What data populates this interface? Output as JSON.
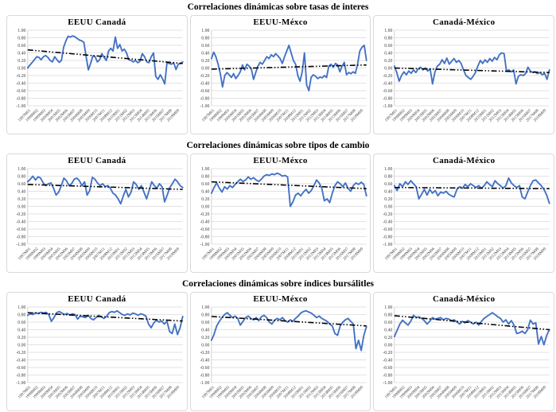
{
  "chart_data": {
    "type": "line",
    "common": {
      "ylim": [
        -1,
        1
      ],
      "ytick_step": 0.2,
      "grid": true,
      "legend": "none",
      "series_color": "#4472C4",
      "trend_color": "#000000",
      "trend_style": "dash-dot-dot",
      "gridline_color": "#d9d9d9",
      "tick_label_color": "#404040",
      "y_tick_labels": [
        "1.00",
        "0.80",
        "0.60",
        "0.40",
        "0.20",
        "0.00",
        "-0.20",
        "-0.40",
        "-0.60",
        "-0.80",
        "-1.00"
      ],
      "x_tick_labels": [
        "1997M01",
        "1998M02",
        "1999M03",
        "2000M04",
        "2001M05",
        "2002M06",
        "2003M07",
        "2004M08",
        "2005M09",
        "2006M10",
        "2007M11",
        "2008M12",
        "2010M01",
        "2011M02",
        "2012M03",
        "2013M04",
        "2014M05",
        "2015M06",
        "2016M07",
        "2017M08",
        "2018M09"
      ]
    },
    "rows": [
      {
        "section_title": "Correlaciones dinámicas sobre tasas de interes",
        "charts": [
          {
            "title": "EEUU Canadá",
            "trend": [
              0.48,
              0.12
            ],
            "values": [
              0.0,
              0.08,
              0.15,
              0.22,
              0.3,
              0.28,
              0.22,
              0.3,
              0.33,
              0.28,
              0.2,
              0.16,
              0.3,
              0.22,
              0.15,
              0.2,
              0.55,
              0.72,
              0.84,
              0.82,
              0.85,
              0.83,
              0.78,
              0.74,
              0.72,
              0.68,
              0.3,
              -0.05,
              0.12,
              0.32,
              0.3,
              0.16,
              0.22,
              0.38,
              0.28,
              0.2,
              0.45,
              0.52,
              0.45,
              0.82,
              0.52,
              0.62,
              0.45,
              0.5,
              0.4,
              0.22,
              0.2,
              0.16,
              0.2,
              0.14,
              0.18,
              0.38,
              0.3,
              0.16,
              0.14,
              0.3,
              0.4,
              -0.22,
              -0.3,
              -0.18,
              -0.28,
              -0.42,
              0.14,
              0.12,
              0.1,
              0.14,
              -0.04,
              0.1,
              0.12,
              0.16
            ]
          },
          {
            "title": "EEUU-Méxco",
            "trend": [
              -0.03,
              0.08
            ],
            "values": [
              0.25,
              0.42,
              0.3,
              0.1,
              -0.15,
              -0.5,
              -0.2,
              -0.12,
              -0.18,
              -0.25,
              -0.15,
              -0.28,
              -0.2,
              -0.1,
              0.08,
              -0.05,
              0.1,
              0.05,
              -0.02,
              -0.3,
              -0.12,
              0.05,
              0.15,
              0.1,
              0.2,
              0.3,
              0.25,
              0.35,
              0.3,
              0.38,
              0.32,
              0.25,
              0.12,
              0.3,
              0.45,
              0.6,
              0.4,
              0.2,
              0.1,
              -0.2,
              -0.35,
              -0.1,
              0.4,
              -0.45,
              -0.6,
              -0.25,
              -0.18,
              -0.22,
              -0.28,
              -0.24,
              -0.26,
              -0.2,
              -0.25,
              0.05,
              0.1,
              0.02,
              0.12,
              0.08,
              -0.1,
              0.05,
              0.15,
              -0.18,
              -0.12,
              -0.15,
              -0.1,
              -0.14,
              0.1,
              0.45,
              0.55,
              0.6,
              0.2
            ]
          },
          {
            "title": "Canadá-México",
            "trend": [
              0.0,
              -0.12
            ],
            "values": [
              0.05,
              -0.12,
              -0.35,
              -0.2,
              -0.1,
              -0.18,
              -0.08,
              -0.14,
              -0.05,
              -0.12,
              -0.02,
              0.02,
              -0.05,
              0.0,
              -0.08,
              -0.02,
              -0.42,
              -0.1,
              0.05,
              0.1,
              0.22,
              0.12,
              0.26,
              0.1,
              0.18,
              0.25,
              0.15,
              0.2,
              0.12,
              -0.05,
              -0.2,
              -0.25,
              -0.3,
              -0.22,
              -0.12,
              0.05,
              0.2,
              0.12,
              0.22,
              0.15,
              0.25,
              0.18,
              0.28,
              0.22,
              0.35,
              0.4,
              0.38,
              -0.08,
              -0.05,
              -0.1,
              -0.05,
              -0.42,
              -0.22,
              -0.18,
              -0.2,
              -0.15,
              0.02,
              -0.08,
              -0.12,
              -0.1,
              -0.15,
              -0.12,
              -0.18,
              -0.14,
              -0.3,
              -0.05
            ]
          }
        ]
      },
      {
        "section_title": "Correlaciones dinámicas sobre tipos de cambio",
        "charts": [
          {
            "title": "EEUU Canadá",
            "trend": [
              0.58,
              0.45
            ],
            "values": [
              0.65,
              0.72,
              0.8,
              0.7,
              0.78,
              0.75,
              0.62,
              0.55,
              0.6,
              0.62,
              0.48,
              0.3,
              0.38,
              0.55,
              0.75,
              0.68,
              0.55,
              0.6,
              0.72,
              0.75,
              0.68,
              0.55,
              0.65,
              0.3,
              0.42,
              0.77,
              0.72,
              0.62,
              0.55,
              0.6,
              0.52,
              0.55,
              0.48,
              0.35,
              0.3,
              0.2,
              0.07,
              0.28,
              0.45,
              0.25,
              0.38,
              0.65,
              0.58,
              0.45,
              0.55,
              0.38,
              0.2,
              0.42,
              0.65,
              0.55,
              0.48,
              0.6,
              0.52,
              0.12,
              0.3,
              0.5,
              0.6,
              0.72,
              0.65,
              0.55,
              0.5
            ]
          },
          {
            "title": "EEUU-Méxco",
            "trend": [
              0.65,
              0.47
            ],
            "values": [
              0.35,
              0.5,
              0.62,
              0.48,
              0.38,
              0.52,
              0.46,
              0.55,
              0.5,
              0.58,
              0.65,
              0.72,
              0.66,
              0.7,
              0.78,
              0.72,
              0.76,
              0.7,
              0.66,
              0.72,
              0.8,
              0.84,
              0.82,
              0.86,
              0.84,
              0.88,
              0.85,
              0.8,
              0.82,
              0.78,
              0.0,
              0.12,
              0.3,
              0.35,
              0.28,
              0.38,
              0.45,
              0.35,
              0.42,
              0.55,
              0.7,
              0.62,
              0.48,
              0.15,
              0.2,
              0.1,
              0.35,
              0.55,
              0.65,
              0.6,
              0.52,
              0.62,
              0.48,
              0.4,
              0.55,
              0.62,
              0.58,
              0.64,
              0.58,
              0.28
            ]
          },
          {
            "title": "Canadá-México",
            "trend": [
              0.5,
              0.47
            ],
            "values": [
              0.55,
              0.42,
              0.6,
              0.52,
              0.65,
              0.58,
              0.68,
              0.6,
              0.52,
              0.2,
              0.32,
              0.45,
              0.3,
              0.45,
              0.35,
              0.42,
              0.28,
              0.38,
              0.35,
              0.4,
              0.32,
              0.28,
              0.25,
              0.45,
              0.52,
              0.48,
              0.58,
              0.52,
              0.6,
              0.55,
              0.5,
              0.55,
              0.48,
              0.55,
              0.65,
              0.58,
              0.52,
              0.68,
              0.6,
              0.55,
              0.48,
              0.55,
              0.75,
              0.62,
              0.55,
              0.5,
              0.55,
              0.25,
              0.2,
              0.38,
              0.55,
              0.68,
              0.7,
              0.62,
              0.55,
              0.45,
              0.3,
              0.08
            ]
          }
        ]
      },
      {
        "section_title": "Correlaciones dinámicas sobre índices bursálitles",
        "charts": [
          {
            "title": "EEUU Canadá",
            "trend": [
              0.85,
              0.63
            ],
            "values": [
              0.78,
              0.82,
              0.8,
              0.85,
              0.83,
              0.86,
              0.84,
              0.86,
              0.8,
              0.62,
              0.72,
              0.85,
              0.88,
              0.84,
              0.8,
              0.83,
              0.79,
              0.82,
              0.8,
              0.68,
              0.76,
              0.74,
              0.72,
              0.78,
              0.7,
              0.66,
              0.72,
              0.78,
              0.74,
              0.7,
              0.75,
              0.85,
              0.88,
              0.86,
              0.9,
              0.85,
              0.8,
              0.78,
              0.82,
              0.79,
              0.84,
              0.82,
              0.78,
              0.82,
              0.8,
              0.76,
              0.55,
              0.45,
              0.58,
              0.65,
              0.6,
              0.63,
              0.55,
              0.62,
              0.35,
              0.3,
              0.55,
              0.27,
              0.45,
              0.75
            ]
          },
          {
            "title": "EEUU-Méxco",
            "trend": [
              0.75,
              0.5
            ],
            "values": [
              0.12,
              0.28,
              0.5,
              0.62,
              0.72,
              0.8,
              0.85,
              0.78,
              0.72,
              0.76,
              0.7,
              0.52,
              0.62,
              0.72,
              0.76,
              0.7,
              0.66,
              0.72,
              0.64,
              0.74,
              0.78,
              0.72,
              0.6,
              0.55,
              0.65,
              0.7,
              0.66,
              0.72,
              0.64,
              0.6,
              0.66,
              0.62,
              0.7,
              0.76,
              0.84,
              0.88,
              0.9,
              0.87,
              0.84,
              0.78,
              0.72,
              0.76,
              0.7,
              0.66,
              0.62,
              0.55,
              0.5,
              0.3,
              0.25,
              0.5,
              0.6,
              0.66,
              0.7,
              0.62,
              0.55,
              -0.1,
              0.12,
              -0.15,
              0.25,
              0.48
            ]
          },
          {
            "title": "Canadá-México",
            "trend": [
              0.77,
              0.4
            ],
            "values": [
              0.22,
              0.38,
              0.55,
              0.65,
              0.58,
              0.52,
              0.62,
              0.78,
              0.72,
              0.74,
              0.7,
              0.64,
              0.55,
              0.62,
              0.72,
              0.68,
              0.7,
              0.72,
              0.66,
              0.7,
              0.68,
              0.64,
              0.66,
              0.6,
              0.55,
              0.62,
              0.58,
              0.64,
              0.6,
              0.55,
              0.6,
              0.52,
              0.62,
              0.7,
              0.75,
              0.8,
              0.85,
              0.8,
              0.74,
              0.7,
              0.6,
              0.66,
              0.55,
              0.64,
              0.52,
              0.3,
              0.32,
              0.36,
              0.3,
              0.4,
              0.65,
              0.55,
              0.58,
              0.02,
              0.22,
              0.0,
              0.25,
              0.4
            ]
          }
        ]
      }
    ]
  }
}
